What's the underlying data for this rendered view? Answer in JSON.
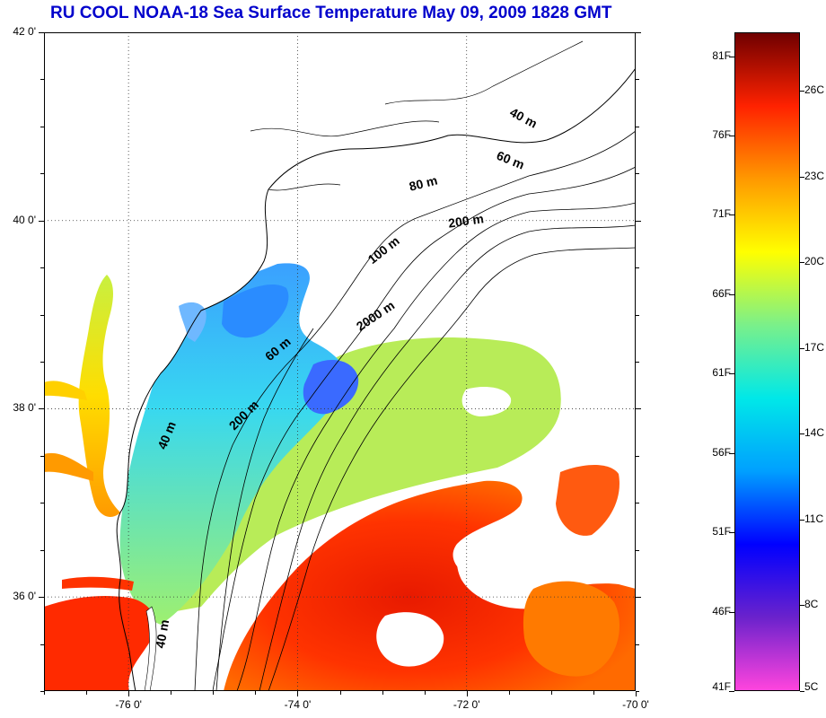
{
  "title": "RU COOL  NOAA-18 Sea Surface Temperature May 09, 2009 1828 GMT",
  "map": {
    "lat_range": [
      35.0,
      42.0
    ],
    "lon_range": [
      -77.0,
      -70.0
    ],
    "lat_labels": [
      "42 0'",
      "40 0'",
      "38 0'",
      "36 0'"
    ],
    "lat_values": [
      42,
      40,
      38,
      36
    ],
    "lon_labels": [
      "-76 0'",
      "-74 0'",
      "-72 0'",
      "-70 0'"
    ],
    "lon_values": [
      -76,
      -74,
      -72,
      -70
    ],
    "grid": "dotted",
    "depth_labels": [
      {
        "text": "40 m",
        "lon": -71.35,
        "lat": 41.05,
        "angle": 28
      },
      {
        "text": "60 m",
        "lon": -71.5,
        "lat": 40.6,
        "angle": 22
      },
      {
        "text": "80 m",
        "lon": -72.5,
        "lat": 40.35,
        "angle": -14
      },
      {
        "text": "200 m",
        "lon": -72.0,
        "lat": 39.95,
        "angle": -8
      },
      {
        "text": "100 m",
        "lon": -72.95,
        "lat": 39.65,
        "angle": -38
      },
      {
        "text": "2000 m",
        "lon": -73.05,
        "lat": 38.95,
        "angle": -34
      },
      {
        "text": "60 m",
        "lon": -74.2,
        "lat": 38.6,
        "angle": -40
      },
      {
        "text": "200 m",
        "lon": -74.6,
        "lat": 37.9,
        "angle": -45
      },
      {
        "text": "40 m",
        "lon": -75.5,
        "lat": 37.7,
        "angle": -68
      },
      {
        "text": "40 m",
        "lon": -75.55,
        "lat": 35.6,
        "angle": -80
      }
    ]
  },
  "colorbar": {
    "fahrenheit_labels": [
      "81F",
      "76F",
      "71F",
      "66F",
      "61F",
      "56F",
      "51F",
      "46F",
      "41F"
    ],
    "fahrenheit_values": [
      81,
      76,
      71,
      66,
      61,
      56,
      51,
      46,
      41
    ],
    "celsius_labels": [
      "26C",
      "23C",
      "20C",
      "17C",
      "14C",
      "11C",
      "8C",
      "5C"
    ],
    "celsius_values": [
      26,
      23,
      20,
      17,
      14,
      11,
      8,
      5
    ],
    "min_f": 41,
    "max_f": 82.5,
    "colors": [
      "#ff44dd",
      "#6a22cc",
      "#0000ff",
      "#00a0ff",
      "#00e8e8",
      "#7af08a",
      "#ffff00",
      "#ff9900",
      "#ff2200",
      "#700000"
    ]
  }
}
